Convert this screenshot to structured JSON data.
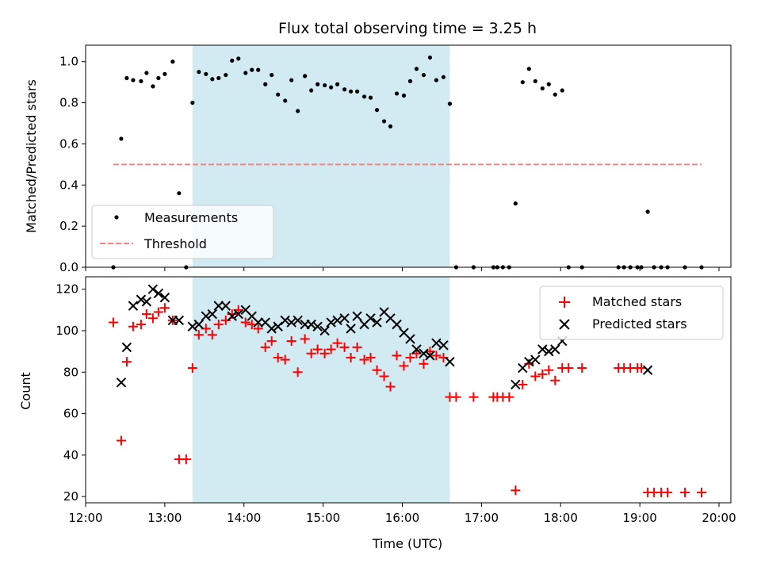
{
  "chart_data": {
    "title": "Flux total observing time = 3.25 h",
    "xlabel": "Time (UTC)",
    "xlim": [
      12.0,
      20.15
    ],
    "xticks": [
      {
        "value": 12,
        "label": "12:00"
      },
      {
        "value": 13,
        "label": "13:00"
      },
      {
        "value": 14,
        "label": "14:00"
      },
      {
        "value": 15,
        "label": "15:00"
      },
      {
        "value": 16,
        "label": "16:00"
      },
      {
        "value": 17,
        "label": "17:00"
      },
      {
        "value": 18,
        "label": "18:00"
      },
      {
        "value": 19,
        "label": "19:00"
      },
      {
        "value": 20,
        "label": "20:00"
      }
    ],
    "shaded_region": {
      "x_start": 13.35,
      "x_end": 16.6,
      "color": "#add8e6"
    },
    "panels": [
      {
        "type": "scatter",
        "ylabel": "Matched/Predicted stars",
        "ylim": [
          0,
          1.08
        ],
        "yticks": [
          "0.0",
          "0.2",
          "0.4",
          "0.6",
          "0.8",
          "1.0"
        ],
        "legend_position": "lower-left",
        "series": [
          {
            "name": "Measurements",
            "marker": "dot",
            "color": "#000000",
            "points": [
              [
                12.35,
                0.0
              ],
              [
                12.45,
                0.625
              ],
              [
                12.52,
                0.92
              ],
              [
                12.6,
                0.91
              ],
              [
                12.7,
                0.905
              ],
              [
                12.77,
                0.945
              ],
              [
                12.85,
                0.88
              ],
              [
                12.92,
                0.92
              ],
              [
                13.0,
                0.94
              ],
              [
                13.1,
                1.0
              ],
              [
                13.18,
                0.36
              ],
              [
                13.27,
                0.0
              ],
              [
                13.35,
                0.8
              ],
              [
                13.43,
                0.95
              ],
              [
                13.52,
                0.94
              ],
              [
                13.6,
                0.915
              ],
              [
                13.68,
                0.92
              ],
              [
                13.77,
                0.935
              ],
              [
                13.85,
                1.005
              ],
              [
                13.93,
                1.015
              ],
              [
                14.02,
                0.945
              ],
              [
                14.1,
                0.96
              ],
              [
                14.18,
                0.96
              ],
              [
                14.27,
                0.89
              ],
              [
                14.35,
                0.935
              ],
              [
                14.43,
                0.84
              ],
              [
                14.52,
                0.81
              ],
              [
                14.6,
                0.91
              ],
              [
                14.68,
                0.76
              ],
              [
                14.77,
                0.93
              ],
              [
                14.85,
                0.86
              ],
              [
                14.93,
                0.89
              ],
              [
                15.02,
                0.885
              ],
              [
                15.1,
                0.875
              ],
              [
                15.18,
                0.89
              ],
              [
                15.27,
                0.865
              ],
              [
                15.35,
                0.855
              ],
              [
                15.43,
                0.855
              ],
              [
                15.52,
                0.83
              ],
              [
                15.6,
                0.825
              ],
              [
                15.68,
                0.765
              ],
              [
                15.77,
                0.71
              ],
              [
                15.85,
                0.685
              ],
              [
                15.93,
                0.845
              ],
              [
                16.02,
                0.835
              ],
              [
                16.1,
                0.905
              ],
              [
                16.18,
                0.965
              ],
              [
                16.27,
                0.935
              ],
              [
                16.35,
                1.02
              ],
              [
                16.43,
                0.91
              ],
              [
                16.52,
                0.925
              ],
              [
                16.6,
                0.795
              ],
              [
                16.68,
                0.0
              ],
              [
                16.9,
                0.0
              ],
              [
                17.15,
                0.0
              ],
              [
                17.2,
                0.0
              ],
              [
                17.27,
                0.0
              ],
              [
                17.35,
                0.0
              ],
              [
                17.43,
                0.31
              ],
              [
                17.52,
                0.9
              ],
              [
                17.6,
                0.965
              ],
              [
                17.68,
                0.905
              ],
              [
                17.77,
                0.87
              ],
              [
                17.85,
                0.89
              ],
              [
                17.93,
                0.84
              ],
              [
                18.02,
                0.86
              ],
              [
                18.1,
                0.0
              ],
              [
                18.27,
                0.0
              ],
              [
                18.73,
                0.0
              ],
              [
                18.8,
                0.0
              ],
              [
                18.88,
                0.0
              ],
              [
                18.97,
                0.0
              ],
              [
                19.02,
                0.0
              ],
              [
                19.1,
                0.27
              ],
              [
                19.18,
                0.0
              ],
              [
                19.27,
                0.0
              ],
              [
                19.35,
                0.0
              ],
              [
                19.57,
                0.0
              ],
              [
                19.78,
                0.0
              ]
            ]
          },
          {
            "name": "Threshold",
            "type": "line",
            "style": "dashed",
            "color": "#ff8080",
            "points": [
              [
                12.35,
                0.5
              ],
              [
                19.78,
                0.5
              ]
            ]
          }
        ]
      },
      {
        "type": "scatter",
        "ylabel": "Count",
        "ylim": [
          17,
          126
        ],
        "yticks": [
          "20",
          "40",
          "60",
          "80",
          "100",
          "120"
        ],
        "legend_position": "upper-right",
        "series": [
          {
            "name": "Matched stars",
            "marker": "plus",
            "color": "#ff0000",
            "points": [
              [
                12.35,
                104
              ],
              [
                12.45,
                47
              ],
              [
                12.52,
                85
              ],
              [
                12.6,
                102
              ],
              [
                12.7,
                103
              ],
              [
                12.77,
                108
              ],
              [
                12.85,
                106
              ],
              [
                12.92,
                109
              ],
              [
                13.0,
                111
              ],
              [
                13.1,
                105
              ],
              [
                13.18,
                38
              ],
              [
                13.27,
                38
              ],
              [
                13.35,
                82
              ],
              [
                13.43,
                98
              ],
              [
                13.52,
                101
              ],
              [
                13.6,
                98
              ],
              [
                13.68,
                103
              ],
              [
                13.77,
                105
              ],
              [
                13.85,
                108
              ],
              [
                13.93,
                110
              ],
              [
                14.02,
                104
              ],
              [
                14.1,
                103
              ],
              [
                14.18,
                101
              ],
              [
                14.27,
                92
              ],
              [
                14.35,
                95
              ],
              [
                14.43,
                87
              ],
              [
                14.52,
                86
              ],
              [
                14.6,
                95
              ],
              [
                14.68,
                80
              ],
              [
                14.77,
                96
              ],
              [
                14.85,
                89
              ],
              [
                14.93,
                91
              ],
              [
                15.02,
                89
              ],
              [
                15.1,
                91
              ],
              [
                15.18,
                94
              ],
              [
                15.27,
                92
              ],
              [
                15.35,
                87
              ],
              [
                15.43,
                92
              ],
              [
                15.52,
                86
              ],
              [
                15.6,
                87
              ],
              [
                15.68,
                81
              ],
              [
                15.77,
                78
              ],
              [
                15.85,
                73
              ],
              [
                15.93,
                88
              ],
              [
                16.02,
                83
              ],
              [
                16.1,
                87
              ],
              [
                16.18,
                89
              ],
              [
                16.27,
                84
              ],
              [
                16.35,
                90
              ],
              [
                16.43,
                88
              ],
              [
                16.52,
                87
              ],
              [
                16.6,
                68
              ],
              [
                16.68,
                68
              ],
              [
                16.9,
                68
              ],
              [
                17.15,
                68
              ],
              [
                17.2,
                68
              ],
              [
                17.27,
                68
              ],
              [
                17.35,
                68
              ],
              [
                17.43,
                23
              ],
              [
                17.52,
                74
              ],
              [
                17.6,
                84
              ],
              [
                17.68,
                78
              ],
              [
                17.77,
                79
              ],
              [
                17.85,
                81
              ],
              [
                17.93,
                76
              ],
              [
                18.02,
                82
              ],
              [
                18.1,
                82
              ],
              [
                18.27,
                82
              ],
              [
                18.73,
                82
              ],
              [
                18.8,
                82
              ],
              [
                18.88,
                82
              ],
              [
                18.97,
                82
              ],
              [
                19.02,
                82
              ],
              [
                19.1,
                22
              ],
              [
                19.18,
                22
              ],
              [
                19.27,
                22
              ],
              [
                19.35,
                22
              ],
              [
                19.57,
                22
              ],
              [
                19.78,
                22
              ]
            ]
          },
          {
            "name": "Predicted stars",
            "marker": "x",
            "color": "#000000",
            "points": [
              [
                12.45,
                75
              ],
              [
                12.52,
                92
              ],
              [
                12.6,
                112
              ],
              [
                12.7,
                115
              ],
              [
                12.77,
                114
              ],
              [
                12.85,
                120
              ],
              [
                12.92,
                118
              ],
              [
                13.0,
                116
              ],
              [
                13.1,
                105
              ],
              [
                13.18,
                105
              ],
              [
                13.35,
                102
              ],
              [
                13.43,
                103
              ],
              [
                13.52,
                107
              ],
              [
                13.6,
                108
              ],
              [
                13.68,
                112
              ],
              [
                13.77,
                112
              ],
              [
                13.85,
                107
              ],
              [
                13.93,
                108
              ],
              [
                14.02,
                110
              ],
              [
                14.1,
                107
              ],
              [
                14.18,
                104
              ],
              [
                14.27,
                104
              ],
              [
                14.35,
                101
              ],
              [
                14.43,
                102
              ],
              [
                14.52,
                105
              ],
              [
                14.6,
                104
              ],
              [
                14.68,
                105
              ],
              [
                14.77,
                103
              ],
              [
                14.85,
                103
              ],
              [
                14.93,
                102
              ],
              [
                15.02,
                100
              ],
              [
                15.1,
                104
              ],
              [
                15.18,
                105
              ],
              [
                15.27,
                106
              ],
              [
                15.35,
                101
              ],
              [
                15.43,
                107
              ],
              [
                15.52,
                103
              ],
              [
                15.6,
                106
              ],
              [
                15.68,
                104
              ],
              [
                15.77,
                109
              ],
              [
                15.85,
                106
              ],
              [
                15.93,
                103
              ],
              [
                16.02,
                99
              ],
              [
                16.1,
                96
              ],
              [
                16.18,
                91
              ],
              [
                16.27,
                89
              ],
              [
                16.35,
                88
              ],
              [
                16.43,
                94
              ],
              [
                16.52,
                93
              ],
              [
                16.6,
                85
              ],
              [
                17.43,
                74
              ],
              [
                17.52,
                82
              ],
              [
                17.6,
                85
              ],
              [
                17.68,
                86
              ],
              [
                17.77,
                91
              ],
              [
                17.85,
                90
              ],
              [
                17.93,
                91
              ],
              [
                18.02,
                95
              ],
              [
                19.1,
                81
              ]
            ]
          }
        ]
      }
    ]
  }
}
